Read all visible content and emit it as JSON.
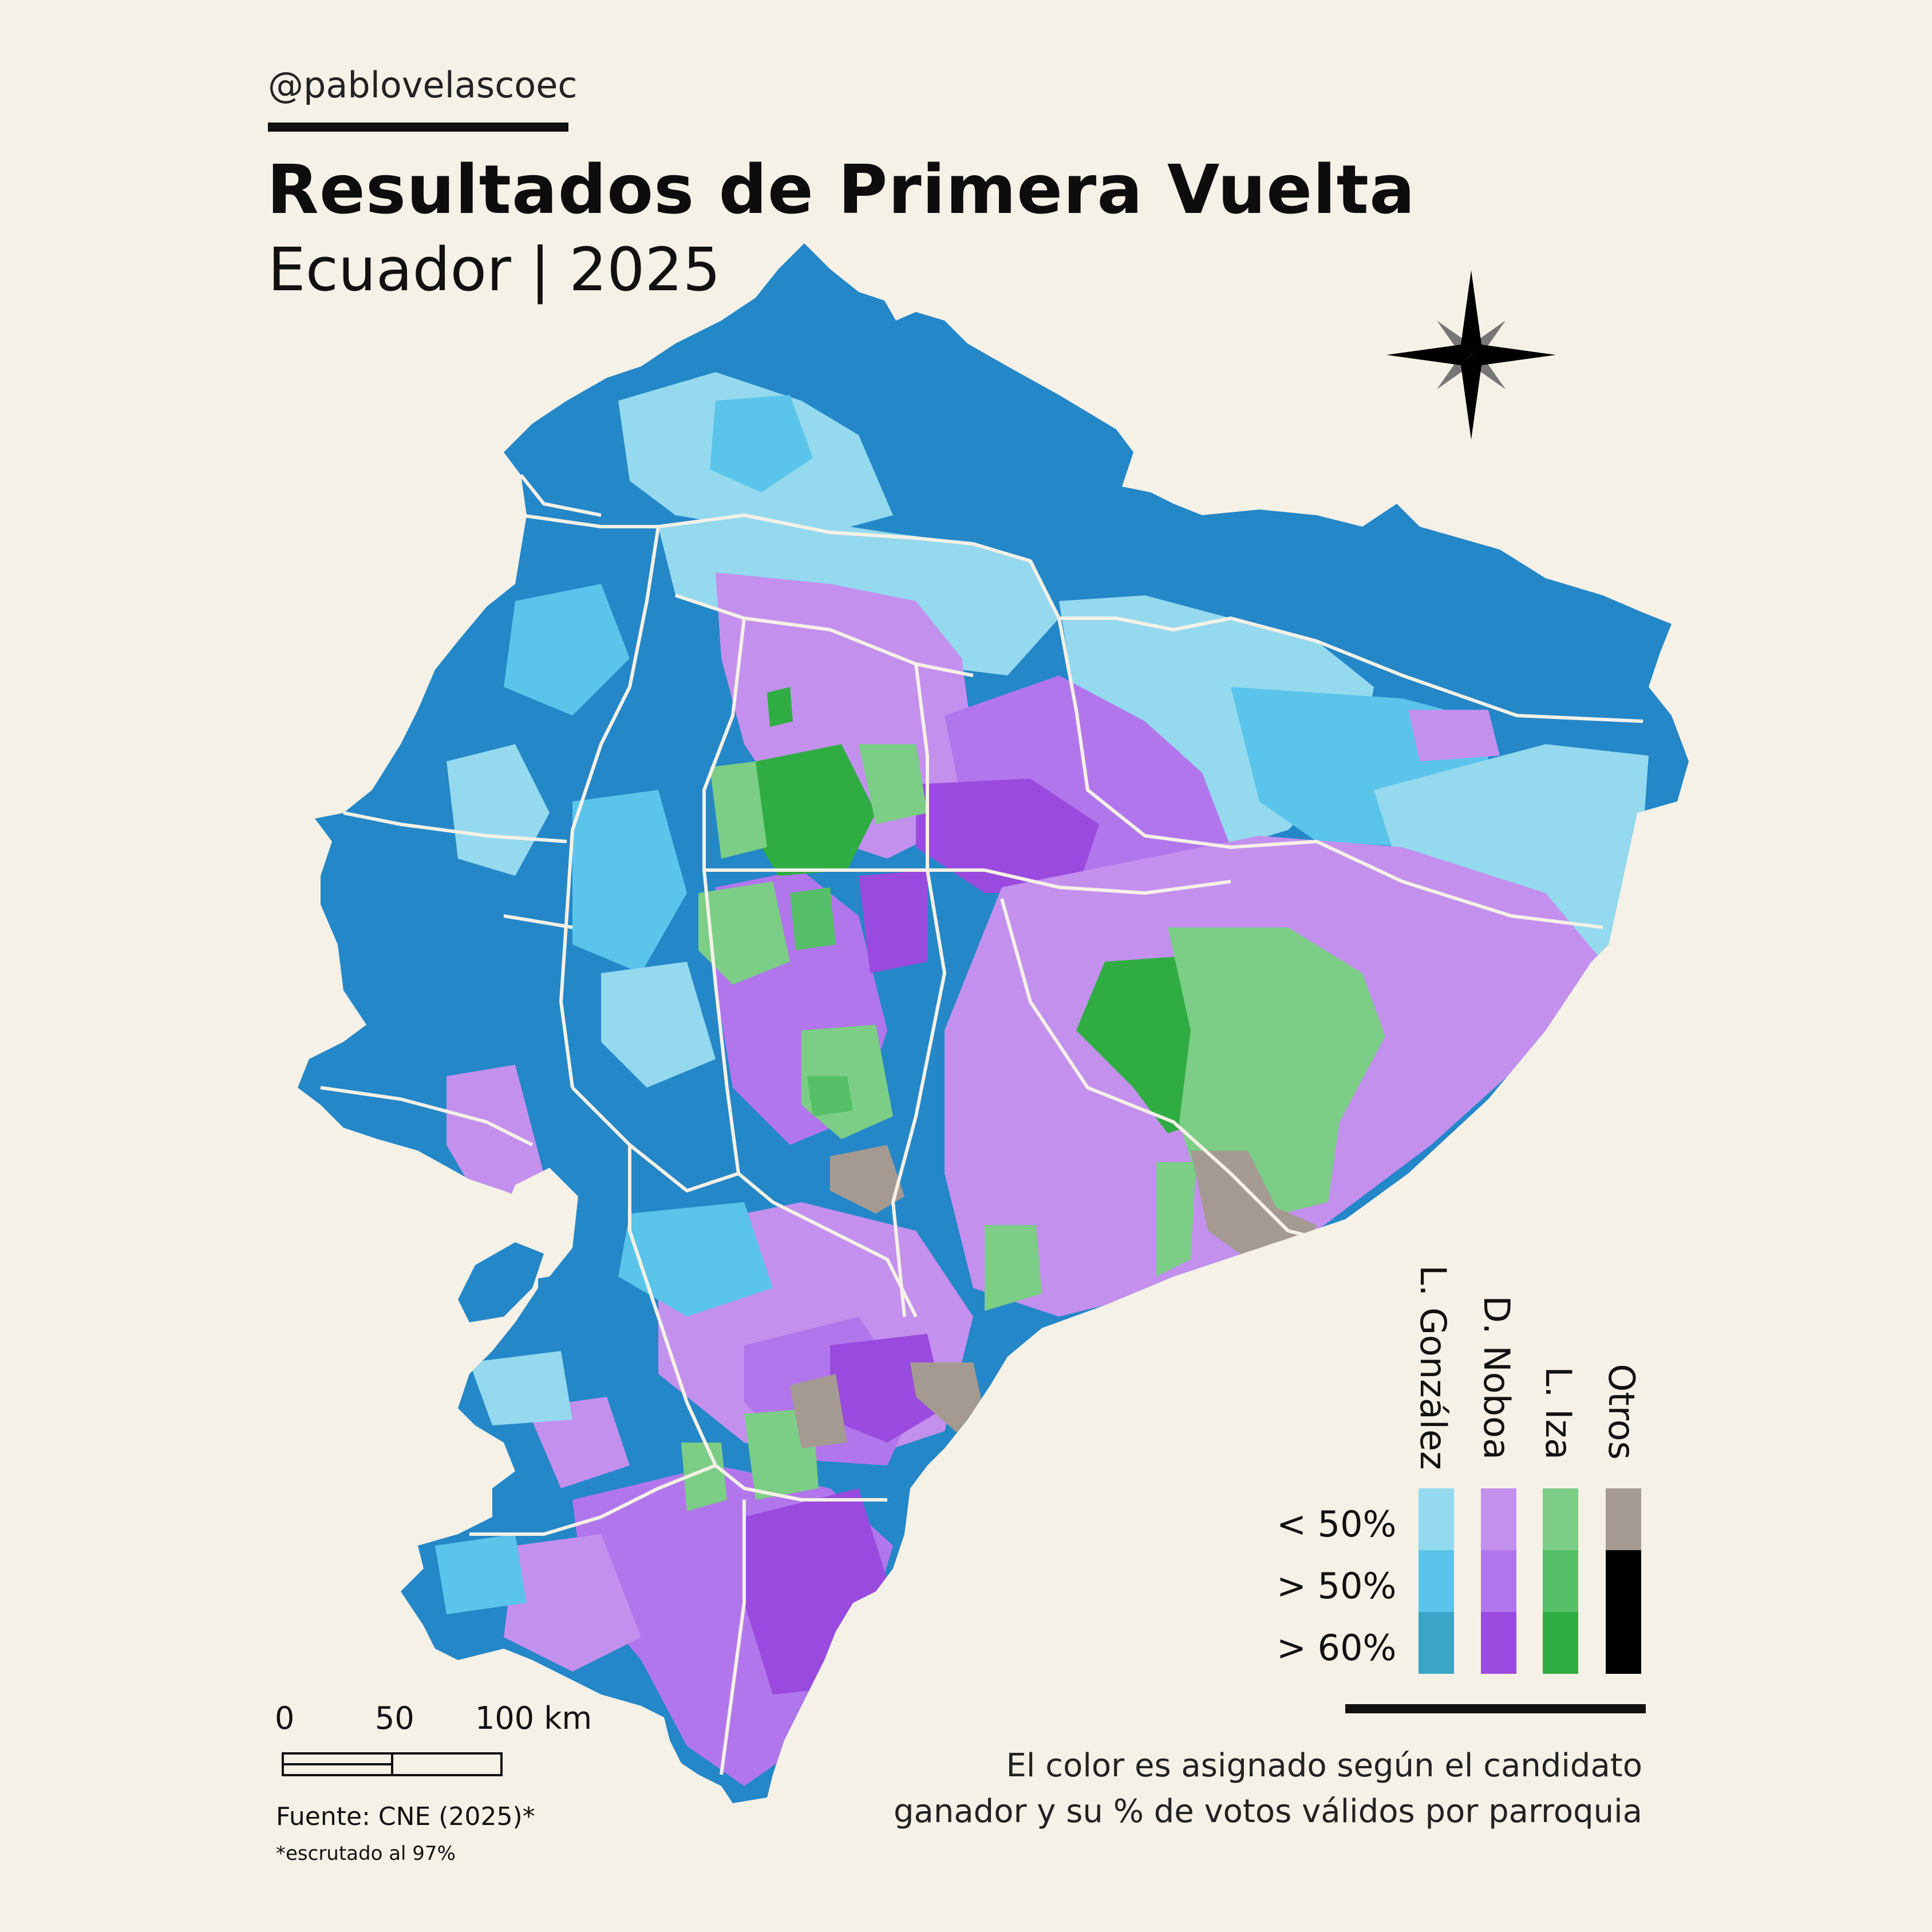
{
  "header": {
    "handle": "@pablovelascoec",
    "title": "Resultados de Primera Vuelta",
    "subtitle": "Ecuador | 2025"
  },
  "legend": {
    "candidates": [
      {
        "name": "L. González",
        "colors": [
          "#94d9ee",
          "#5bc4ea",
          "#3aa5c4"
        ]
      },
      {
        "name": "D. Noboa",
        "colors": [
          "#c390ee",
          "#b276ec",
          "#9a4ade"
        ]
      },
      {
        "name": "L. Iza",
        "colors": [
          "#7ccd86",
          "#55c068",
          "#2fad43"
        ]
      },
      {
        "name": "Otros",
        "colors": [
          "#a49a92",
          "#000000",
          "#000000"
        ]
      }
    ],
    "rows": [
      "<  50%",
      ">  50%",
      ">  60%"
    ]
  },
  "note": {
    "line1": "El color es asignado según el candidato",
    "line2": "ganador y su % de votos válidos por parroquia"
  },
  "scale": {
    "labels": [
      "0",
      "50",
      "100 km"
    ]
  },
  "source": {
    "text": "Fuente: CNE (2025)*",
    "footnote": "*escrutado al 97%"
  },
  "map_colors": {
    "gonzalez_dark": "#2487c8",
    "gonzalez_mid": "#5bc4ea",
    "gonzalez_light": "#94d9ee",
    "noboa_light": "#c390ee",
    "noboa_mid": "#b276ec",
    "noboa_dark": "#9a4ade",
    "iza_light": "#7ccd86",
    "iza_dark": "#2fad43",
    "otros": "#a49a92",
    "border": "#f5f1e6"
  }
}
